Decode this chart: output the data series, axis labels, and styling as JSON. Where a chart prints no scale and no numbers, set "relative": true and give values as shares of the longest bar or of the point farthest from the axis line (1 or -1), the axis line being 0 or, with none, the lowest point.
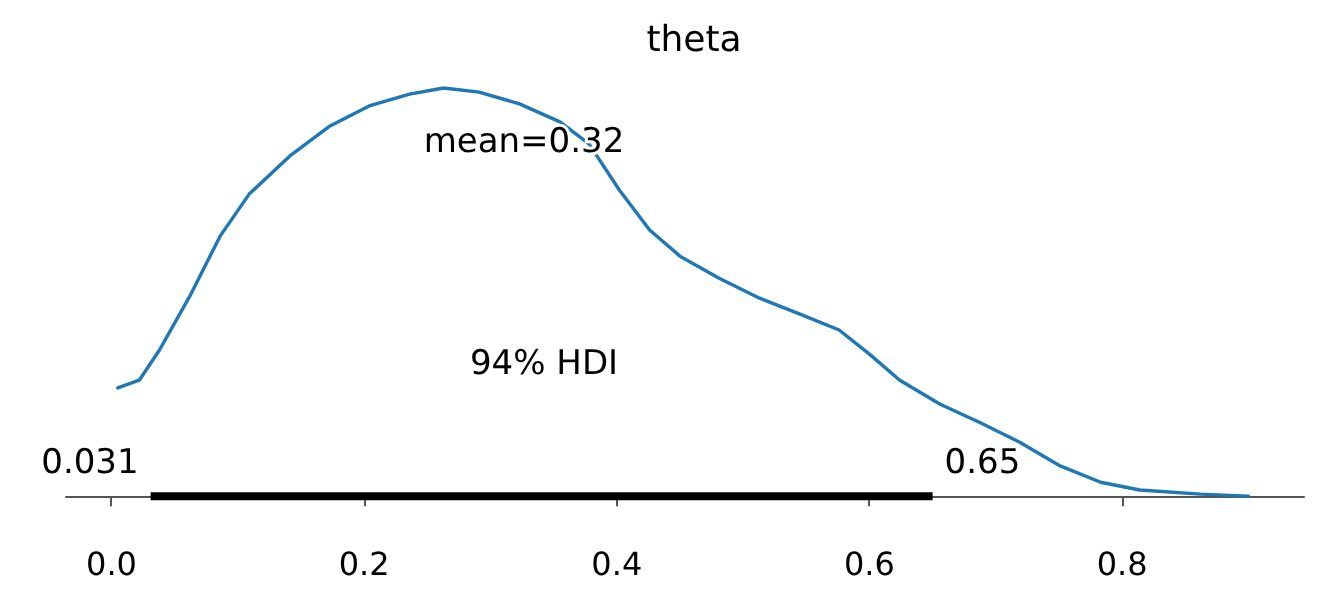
{
  "chart_data": {
    "type": "line",
    "title": "theta",
    "relative": true,
    "x": [
      0.005,
      0.022,
      0.038,
      0.062,
      0.086,
      0.109,
      0.141,
      0.173,
      0.204,
      0.236,
      0.263,
      0.291,
      0.323,
      0.355,
      0.378,
      0.402,
      0.426,
      0.45,
      0.481,
      0.513,
      0.545,
      0.576,
      0.6,
      0.624,
      0.656,
      0.687,
      0.719,
      0.751,
      0.783,
      0.814,
      0.862,
      0.9
    ],
    "series": [
      {
        "color": "#1f77b4",
        "values": [
          0.265,
          0.284,
          0.358,
          0.49,
          0.637,
          0.74,
          0.833,
          0.907,
          0.956,
          0.985,
          1,
          0.99,
          0.961,
          0.917,
          0.863,
          0.75,
          0.652,
          0.588,
          0.534,
          0.485,
          0.446,
          0.407,
          0.348,
          0.284,
          0.225,
          0.181,
          0.132,
          0.074,
          0.034,
          0.015,
          0.005,
          0
        ]
      },
      {
        "color": "#000000",
        "x": [
          0.031,
          0.65
        ],
        "values": [
          0,
          0
        ]
      }
    ],
    "xlim": [
      -0.036,
      0.944
    ],
    "xticks": [
      {
        "value": 0,
        "label": "0.0"
      },
      0.2,
      0.4,
      0.6,
      0.8
    ],
    "annotations": [
      "mean=0.32",
      "94% HDI",
      {
        "text": "0.031",
        "x": 0.031,
        "y": 0
      },
      {
        "text": "0.65",
        "x": 0.65,
        "y": 0
      }
    ],
    "grid": false,
    "marker": "none",
    "line_style": "solid"
  }
}
